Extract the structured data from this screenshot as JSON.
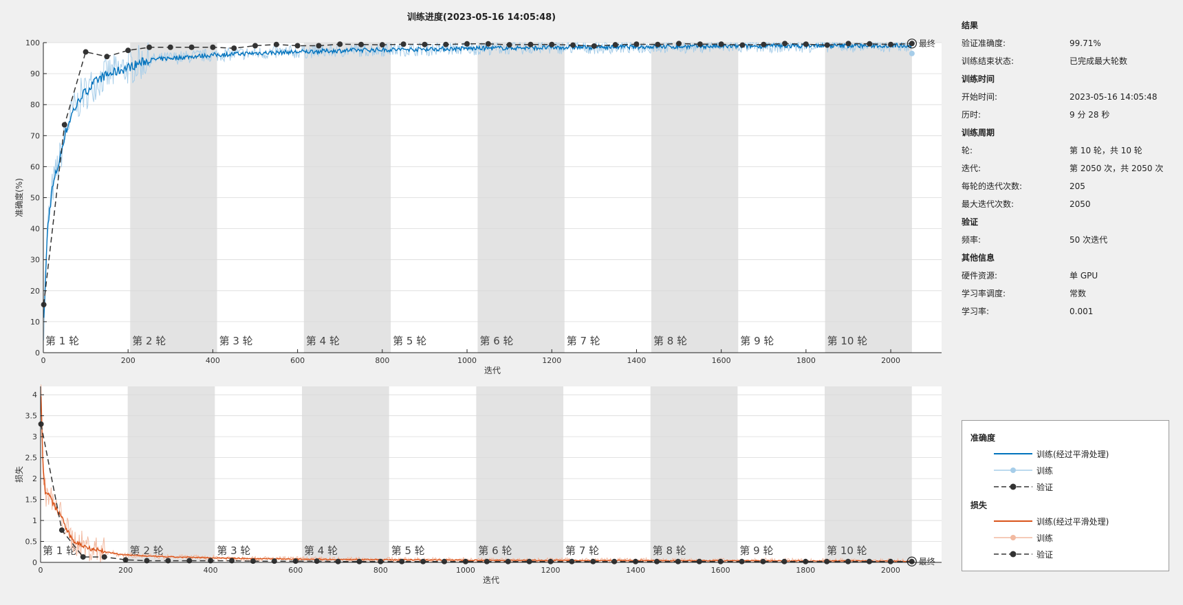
{
  "title": "训练进度(2023-05-16 14:05:48)",
  "info": {
    "sections": [
      {
        "heading": "结果",
        "rows": [
          {
            "k": "验证准确度:",
            "v": "99.71%"
          },
          {
            "k": "训练结束状态:",
            "v": "已完成最大轮数"
          }
        ]
      },
      {
        "heading": "训练时间",
        "rows": [
          {
            "k": "开始时间:",
            "v": "2023-05-16 14:05:48"
          },
          {
            "k": "历时:",
            "v": "9 分 28 秒"
          }
        ]
      },
      {
        "heading": "训练周期",
        "rows": [
          {
            "k": "轮:",
            "v": "第 10 轮，共 10 轮"
          },
          {
            "k": "迭代:",
            "v": "第 2050 次，共 2050 次"
          },
          {
            "k": "每轮的迭代次数:",
            "v": "205"
          },
          {
            "k": "最大迭代次数:",
            "v": "2050"
          }
        ]
      },
      {
        "heading": "验证",
        "rows": [
          {
            "k": "频率:",
            "v": "50 次迭代"
          }
        ]
      },
      {
        "heading": "其他信息",
        "rows": [
          {
            "k": "硬件资源:",
            "v": "单 GPU"
          },
          {
            "k": "学习率调度:",
            "v": "常数"
          },
          {
            "k": "学习率:",
            "v": "0.001"
          }
        ]
      }
    ]
  },
  "legend": {
    "accuracy_heading": "准确度",
    "loss_heading": "损失",
    "smoothed": "训练(经过平滑处理)",
    "train": "训练",
    "validation": "验证"
  },
  "colors": {
    "acc_smoothed": "#0072bd",
    "acc_raw": "#a6cde9",
    "loss_smoothed": "#d95319",
    "loss_raw": "#f2b9a0",
    "validation": "#333333",
    "epoch_shade": "#e3e3e3"
  },
  "chart_data": [
    {
      "type": "line",
      "xlabel": "迭代",
      "ylabel": "准确度(%)",
      "xlim": [
        0,
        2120
      ],
      "ylim": [
        0,
        100
      ],
      "xticks": [
        0,
        200,
        400,
        600,
        800,
        1000,
        1200,
        1400,
        1600,
        1800,
        2000
      ],
      "yticks": [
        0,
        10,
        20,
        30,
        40,
        50,
        60,
        70,
        80,
        90,
        100
      ],
      "epoch_labels": [
        "第 1 轮",
        "第 2 轮",
        "第 3 轮",
        "第 4 轮",
        "第 5 轮",
        "第 6 轮",
        "第 7 轮",
        "第 8 轮",
        "第 9 轮",
        "第 10 轮"
      ],
      "iterations_per_epoch": 205,
      "final_label": "最终",
      "smoothed_train": {
        "x": [
          1,
          10,
          20,
          30,
          40,
          50,
          60,
          70,
          80,
          90,
          100,
          120,
          140,
          160,
          180,
          200,
          220,
          240,
          260,
          300,
          350,
          400,
          450,
          500,
          550,
          600,
          650,
          700,
          750,
          800,
          850,
          900,
          950,
          1000,
          1050,
          1100,
          1150,
          1200,
          1250,
          1300,
          1350,
          1400,
          1450,
          1500,
          1550,
          1600,
          1650,
          1700,
          1750,
          1800,
          1850,
          1900,
          1950,
          2000,
          2050
        ],
        "y": [
          10,
          40,
          52,
          58,
          63,
          70,
          74,
          78,
          80,
          83,
          84,
          87,
          89,
          90,
          91,
          92,
          93,
          94,
          94.5,
          95,
          95.5,
          96,
          96.3,
          96.6,
          96.8,
          97,
          97.2,
          97.4,
          97.6,
          97.7,
          97.8,
          97.9,
          98,
          98.1,
          98.2,
          98.3,
          98.3,
          98.4,
          98.5,
          98.5,
          98.6,
          98.6,
          98.7,
          98.7,
          98.8,
          98.8,
          98.8,
          98.9,
          98.9,
          99,
          99,
          99,
          99,
          99.1,
          99.1
        ]
      },
      "validation": {
        "x": [
          1,
          50,
          100,
          150,
          200,
          250,
          300,
          350,
          400,
          450,
          500,
          550,
          600,
          650,
          700,
          750,
          800,
          850,
          900,
          950,
          1000,
          1050,
          1100,
          1150,
          1200,
          1250,
          1300,
          1350,
          1400,
          1450,
          1500,
          1550,
          1600,
          1650,
          1700,
          1750,
          1800,
          1850,
          1900,
          1950,
          2000,
          2050
        ],
        "y": [
          15.5,
          73.5,
          97,
          95.5,
          97.5,
          98.5,
          98.5,
          98.5,
          98.5,
          98.2,
          99,
          99.4,
          99,
          99,
          99.5,
          99.4,
          99.3,
          99.5,
          99.4,
          99.4,
          99.6,
          99.6,
          99.3,
          99.4,
          99.4,
          99.2,
          98.9,
          99.3,
          99.5,
          99.4,
          99.7,
          99.5,
          99.5,
          99.2,
          99.4,
          99.7,
          99.5,
          99.2,
          99.7,
          99.6,
          99.4,
          99.71
        ]
      },
      "final_train_point": {
        "x": 2050,
        "y": 96.5
      }
    },
    {
      "type": "line",
      "xlabel": "迭代",
      "ylabel": "损失",
      "xlim": [
        0,
        2120
      ],
      "ylim": [
        0,
        4.2
      ],
      "xticks": [
        0,
        200,
        400,
        600,
        800,
        1000,
        1200,
        1400,
        1600,
        1800,
        2000
      ],
      "yticks": [
        0,
        0.5,
        1,
        1.5,
        2,
        2.5,
        3,
        3.5,
        4
      ],
      "epoch_labels": [
        "第 1 轮",
        "第 2 轮",
        "第 3 轮",
        "第 4 轮",
        "第 5 轮",
        "第 6 轮",
        "第 7 轮",
        "第 8 轮",
        "第 9 轮",
        "第 10 轮"
      ],
      "iterations_per_epoch": 205,
      "final_label": "最终",
      "smoothed_train": {
        "x": [
          1,
          5,
          10,
          20,
          30,
          40,
          50,
          60,
          70,
          80,
          90,
          100,
          120,
          140,
          160,
          180,
          200,
          250,
          300,
          350,
          400,
          450,
          500,
          600,
          700,
          800,
          900,
          1000,
          1100,
          1200,
          1300,
          1400,
          1500,
          1600,
          1700,
          1800,
          1900,
          2000,
          2050
        ],
        "y": [
          4.0,
          2.5,
          1.7,
          1.6,
          1.4,
          1.2,
          1.1,
          0.8,
          0.6,
          0.5,
          0.45,
          0.4,
          0.33,
          0.28,
          0.24,
          0.2,
          0.18,
          0.15,
          0.13,
          0.12,
          0.11,
          0.1,
          0.09,
          0.08,
          0.07,
          0.065,
          0.06,
          0.055,
          0.05,
          0.05,
          0.045,
          0.045,
          0.04,
          0.04,
          0.04,
          0.035,
          0.035,
          0.03,
          0.03
        ]
      },
      "validation": {
        "x": [
          1,
          50,
          100,
          150,
          200,
          250,
          300,
          350,
          400,
          450,
          500,
          550,
          600,
          650,
          700,
          750,
          800,
          850,
          900,
          950,
          1000,
          1050,
          1100,
          1150,
          1200,
          1250,
          1300,
          1350,
          1400,
          1450,
          1500,
          1550,
          1600,
          1650,
          1700,
          1750,
          1800,
          1850,
          1900,
          1950,
          2000,
          2050
        ],
        "y": [
          3.3,
          0.77,
          0.13,
          0.13,
          0.06,
          0.04,
          0.04,
          0.04,
          0.04,
          0.04,
          0.03,
          0.03,
          0.03,
          0.03,
          0.02,
          0.02,
          0.02,
          0.02,
          0.02,
          0.02,
          0.02,
          0.02,
          0.02,
          0.02,
          0.02,
          0.02,
          0.02,
          0.02,
          0.02,
          0.02,
          0.02,
          0.02,
          0.02,
          0.02,
          0.02,
          0.02,
          0.02,
          0.02,
          0.02,
          0.02,
          0.02,
          0.02
        ]
      }
    }
  ]
}
